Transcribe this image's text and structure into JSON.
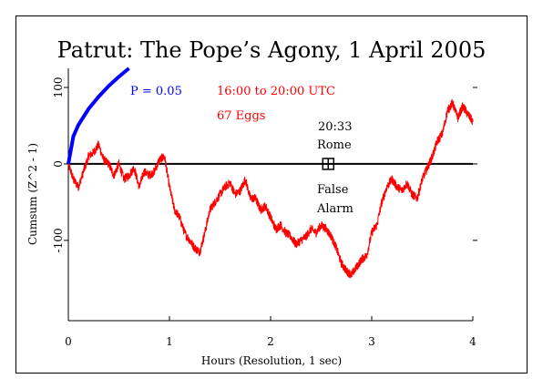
{
  "chart_data": {
    "type": "line",
    "title": "Patrut: The Pope’s Agony, 1 April 2005",
    "xlabel": "Hours (Resolution, 1 sec)",
    "ylabel": "Cumsum (Z^2 - 1)",
    "xlim": [
      0,
      4
    ],
    "ylim": [
      -205,
      125
    ],
    "x_ticks": [
      0,
      1,
      2,
      3,
      4
    ],
    "x_tick_labels": [
      "0",
      "1",
      "2",
      "3",
      "4"
    ],
    "y_ticks": [
      -100,
      0,
      100
    ],
    "y_tick_labels": [
      "-100",
      "0",
      "100"
    ],
    "grid": false,
    "legend": "none",
    "series": [
      {
        "name": "P = 0.05",
        "color": "#0000ff",
        "curve": "1.96*sqrt(2*t_seconds)",
        "x": [
          0,
          0.05,
          0.1,
          0.2,
          0.3,
          0.4,
          0.5,
          0.6,
          0.7,
          0.75
        ],
        "y": [
          0,
          36,
          51,
          72,
          88,
          102,
          114,
          125,
          135,
          140
        ]
      },
      {
        "name": "",
        "color": "#ff0000",
        "x": [
          0,
          0.05,
          0.1,
          0.15,
          0.2,
          0.25,
          0.3,
          0.35,
          0.4,
          0.45,
          0.5,
          0.55,
          0.6,
          0.65,
          0.7,
          0.75,
          0.8,
          0.85,
          0.9,
          0.95,
          1.0,
          1.05,
          1.1,
          1.15,
          1.2,
          1.25,
          1.3,
          1.35,
          1.4,
          1.45,
          1.5,
          1.55,
          1.6,
          1.65,
          1.7,
          1.75,
          1.8,
          1.85,
          1.9,
          1.95,
          2.0,
          2.05,
          2.1,
          2.15,
          2.2,
          2.25,
          2.3,
          2.35,
          2.4,
          2.45,
          2.5,
          2.55,
          2.6,
          2.65,
          2.7,
          2.75,
          2.8,
          2.85,
          2.9,
          2.95,
          3.0,
          3.05,
          3.1,
          3.15,
          3.2,
          3.25,
          3.3,
          3.35,
          3.4,
          3.45,
          3.5,
          3.55,
          3.6,
          3.65,
          3.7,
          3.75,
          3.8,
          3.85,
          3.9,
          3.95,
          4.0
        ],
        "y": [
          0,
          -20,
          -30,
          -10,
          10,
          15,
          25,
          5,
          0,
          -15,
          0,
          -20,
          -15,
          -5,
          -30,
          -10,
          -15,
          -10,
          5,
          10,
          -30,
          -60,
          -70,
          -90,
          -100,
          -110,
          -115,
          -90,
          -60,
          -50,
          -40,
          -30,
          -25,
          -40,
          -35,
          -20,
          -45,
          -45,
          -60,
          -55,
          -70,
          -85,
          -80,
          -90,
          -95,
          -105,
          -100,
          -95,
          -85,
          -90,
          -80,
          -85,
          -95,
          -110,
          -130,
          -140,
          -145,
          -135,
          -125,
          -120,
          -90,
          -80,
          -50,
          -30,
          -20,
          -30,
          -35,
          -25,
          -40,
          -45,
          -20,
          -5,
          10,
          30,
          40,
          70,
          80,
          60,
          75,
          65,
          55
        ]
      }
    ],
    "annotations": {
      "p_label": "P = 0.05",
      "time_range": "16:00 to 20:00 UTC",
      "eggs": "67 Eggs",
      "event_time": "20:33",
      "event_place": "Rome",
      "alarm_line1": "False",
      "alarm_line2": "Alarm",
      "event_marker_x": 2.57,
      "event_marker_y": 0
    },
    "colors": {
      "data": "#ff0000",
      "significance": "#0000ff",
      "annotation_red": "#ff0000",
      "annotation_blue": "#0000ff",
      "text": "#000000"
    }
  }
}
